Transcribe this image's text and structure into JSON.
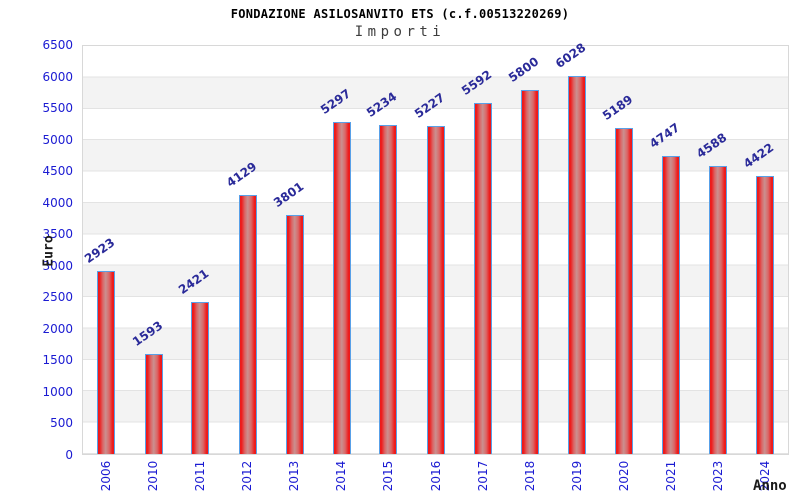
{
  "header": {
    "title": "FONDAZIONE ASILOSANVITO ETS (c.f.00513220269)",
    "subtitle": "Importi"
  },
  "chart_data": {
    "type": "bar",
    "title": "FONDAZIONE ASILOSANVITO ETS (c.f.00513220269)",
    "subtitle": "Importi",
    "xlabel": "Anno",
    "ylabel": "Euro",
    "categories": [
      "2006",
      "2010",
      "2011",
      "2012",
      "2013",
      "2014",
      "2015",
      "2016",
      "2017",
      "2018",
      "2019",
      "2020",
      "2021",
      "2023",
      "2024"
    ],
    "values": [
      2923,
      1593,
      2421,
      4129,
      3801,
      5297,
      5234,
      5227,
      5592,
      5800,
      6028,
      5189,
      4747,
      4588,
      4422
    ],
    "ylim": [
      0,
      6500
    ],
    "ytick_step": 500,
    "grid": true,
    "legend": false,
    "band_colors": [
      "#ffffff",
      "#f3f3f3"
    ],
    "gridline_color": "#e3e3e3",
    "plot_border_color": "#d8d8d8",
    "bar_edge_color": "#ee1a1a",
    "bar_center_color": "#cb908f",
    "bar_border_color": "#58a0e8",
    "tick_label_color": "#1b1bd2",
    "value_label_color": "#2a2a99"
  }
}
